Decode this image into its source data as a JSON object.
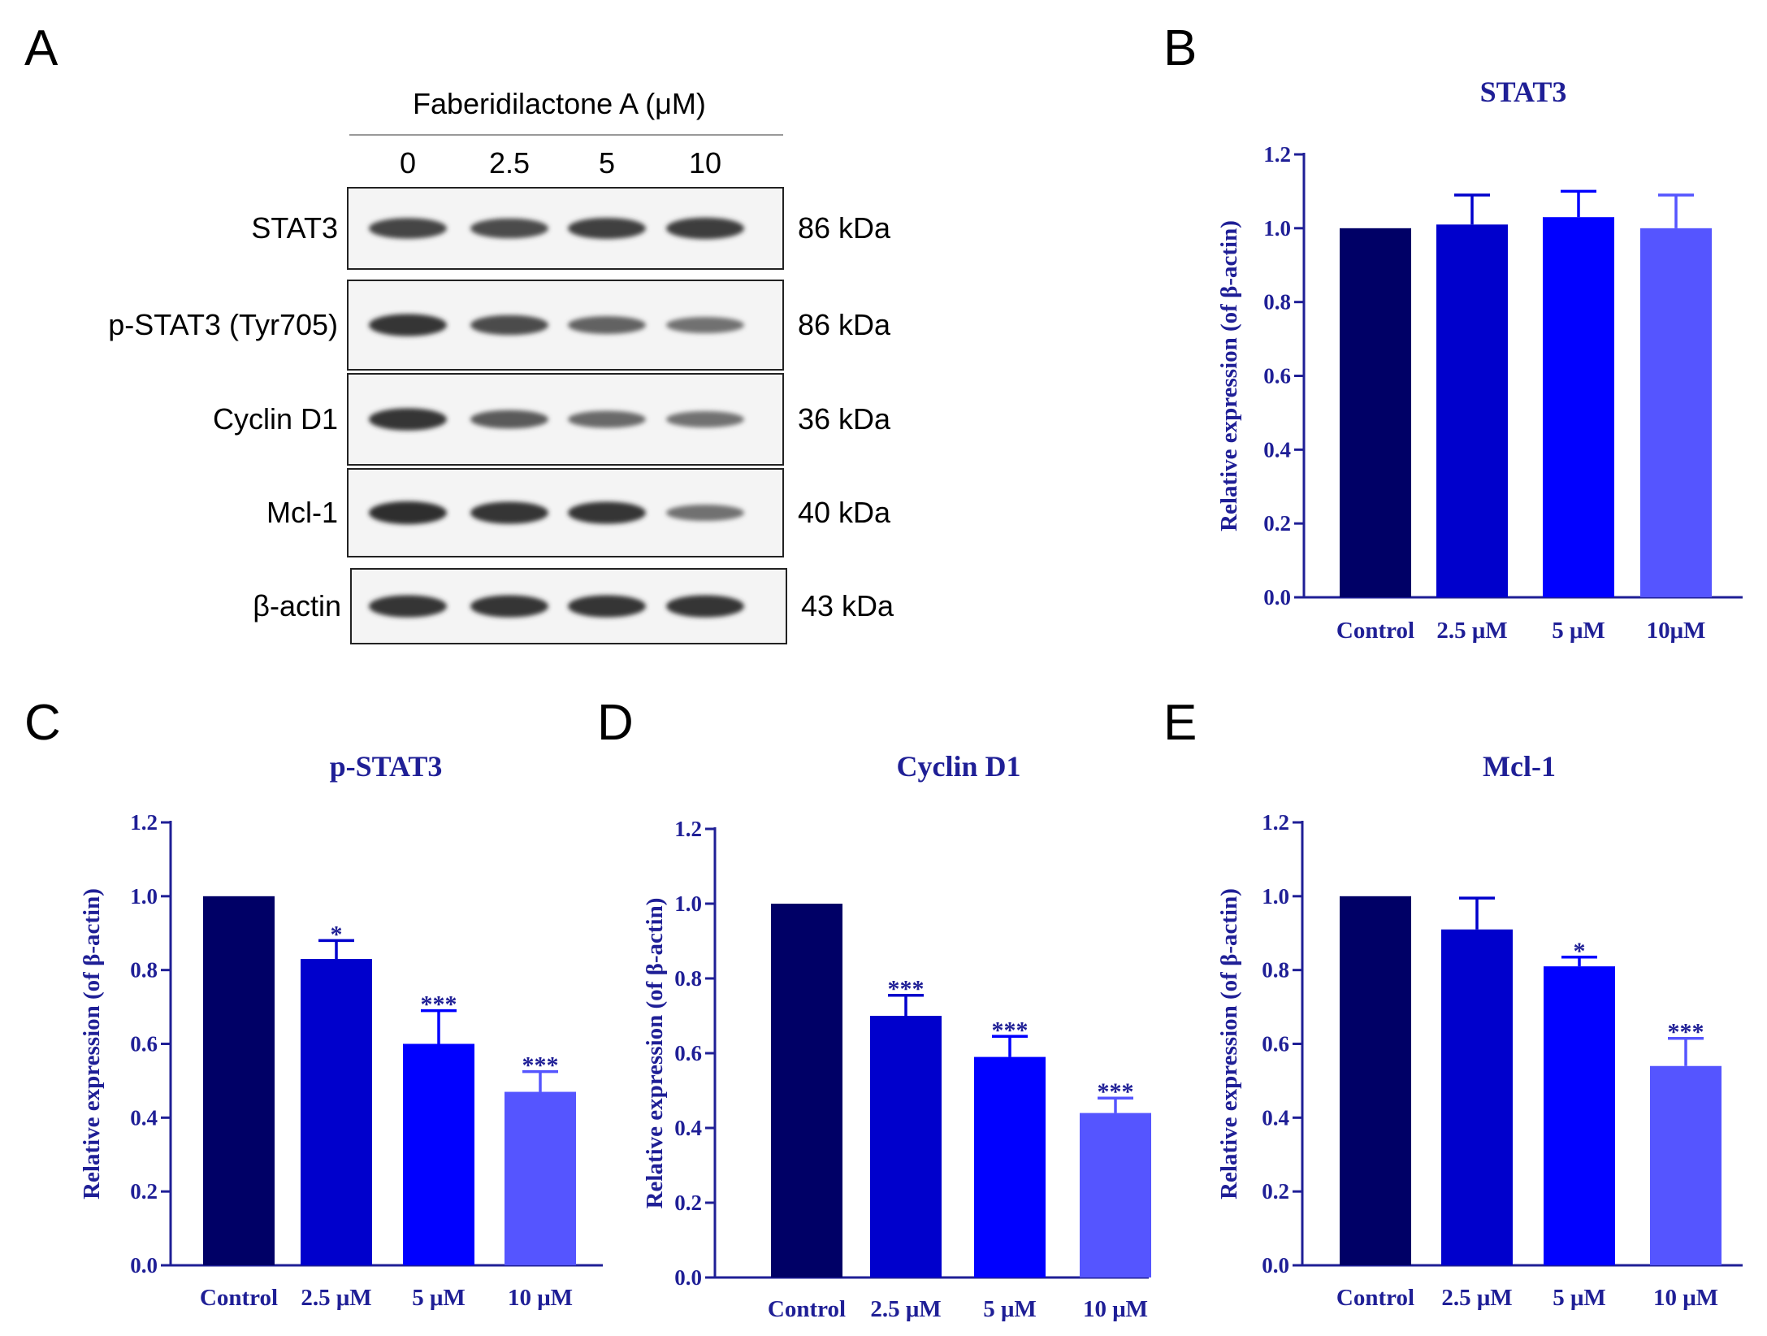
{
  "panels": {
    "A": "A",
    "B": "B",
    "C": "C",
    "D": "D",
    "E": "E"
  },
  "western_blot": {
    "treatment_label": "Faberidilactone A (μM)",
    "doses": [
      "0",
      "2.5",
      "5",
      "10"
    ],
    "rows": [
      {
        "protein": "STAT3",
        "mw": "86 kDa",
        "intensities": [
          0.75,
          0.7,
          0.78,
          0.8
        ]
      },
      {
        "protein": "p-STAT3 (Tyr705)",
        "mw": "86 kDa",
        "intensities": [
          0.85,
          0.7,
          0.55,
          0.45
        ]
      },
      {
        "protein": "Cyclin D1",
        "mw": "36 kDa",
        "intensities": [
          0.85,
          0.6,
          0.5,
          0.45
        ]
      },
      {
        "protein": "Mcl-1",
        "mw": "40 kDa",
        "intensities": [
          0.9,
          0.85,
          0.85,
          0.45
        ]
      },
      {
        "protein": "β-actin",
        "mw": "43 kDa",
        "intensities": [
          0.85,
          0.85,
          0.85,
          0.85
        ]
      }
    ]
  },
  "colors": {
    "axis": "#1f1f96",
    "bars": [
      "#000066",
      "#0000cc",
      "#0000ff",
      "#5555ff"
    ]
  },
  "chart_data": [
    {
      "id": "B",
      "type": "bar",
      "title": "STAT3",
      "ylabel": "Relative expression (of β-actin)",
      "categories": [
        "Control",
        "2.5 μM",
        "5 μM",
        "10μM"
      ],
      "values": [
        1.0,
        1.01,
        1.03,
        1.0
      ],
      "errors": [
        0,
        0.08,
        0.07,
        0.09
      ],
      "significance": [
        "",
        "",
        "",
        ""
      ],
      "ylim": [
        0,
        1.2
      ],
      "yticks": [
        "0.0",
        "0.2",
        "0.4",
        "0.6",
        "0.8",
        "1.0",
        "1.2"
      ]
    },
    {
      "id": "C",
      "type": "bar",
      "title": "p-STAT3",
      "ylabel": "Relative expression (of β-actin)",
      "categories": [
        "Control",
        "2.5 μM",
        "5 μM",
        "10 μM"
      ],
      "values": [
        1.0,
        0.83,
        0.6,
        0.47
      ],
      "errors": [
        0,
        0.05,
        0.09,
        0.055
      ],
      "significance": [
        "",
        "*",
        "***",
        "***"
      ],
      "ylim": [
        0,
        1.2
      ],
      "yticks": [
        "0.0",
        "0.2",
        "0.4",
        "0.6",
        "0.8",
        "1.0",
        "1.2"
      ]
    },
    {
      "id": "D",
      "type": "bar",
      "title": "Cyclin D1",
      "ylabel": "Relative expression (of β-actin)",
      "categories": [
        "Control",
        "2.5 μM",
        "5 μM",
        "10 μM"
      ],
      "values": [
        1.0,
        0.7,
        0.59,
        0.44
      ],
      "errors": [
        0,
        0.055,
        0.055,
        0.04
      ],
      "significance": [
        "",
        "***",
        "***",
        "***"
      ],
      "ylim": [
        0,
        1.2
      ],
      "yticks": [
        "0.0",
        "0.2",
        "0.4",
        "0.6",
        "0.8",
        "1.0",
        "1.2"
      ]
    },
    {
      "id": "E",
      "type": "bar",
      "title": "Mcl-1",
      "ylabel": "Relative expression (of β-actin)",
      "categories": [
        "Control",
        "2.5 μM",
        "5 μM",
        "10 μM"
      ],
      "values": [
        1.0,
        0.91,
        0.81,
        0.54
      ],
      "errors": [
        0,
        0.085,
        0.025,
        0.075
      ],
      "significance": [
        "",
        "",
        "*",
        "***"
      ],
      "ylim": [
        0,
        1.2
      ],
      "yticks": [
        "0.0",
        "0.2",
        "0.4",
        "0.6",
        "0.8",
        "1.0",
        "1.2"
      ]
    }
  ]
}
